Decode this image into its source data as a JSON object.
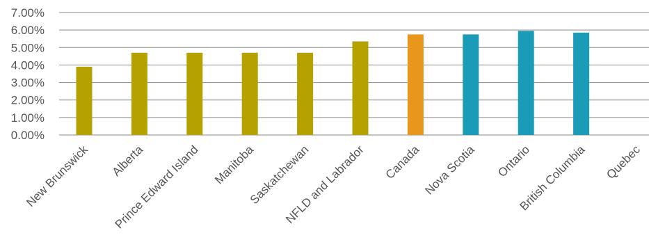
{
  "chart_data": {
    "type": "bar",
    "title": "",
    "xlabel": "",
    "ylabel": "",
    "ylim": [
      0,
      7
    ],
    "grid": true,
    "legend": "none",
    "y_ticks": [
      "0.00%",
      "1.00%",
      "2.00%",
      "3.00%",
      "4.00%",
      "5.00%",
      "6.00%",
      "7.00%"
    ],
    "categories": [
      "New Brunswick",
      "Alberta",
      "Prince Edward Island",
      "Manitoba",
      "Saskatchewan",
      "NFLD and Labrador",
      "Canada",
      "Nova Scotia",
      "Ontario",
      "British Columbia",
      "Quebec"
    ],
    "values": [
      3.9,
      4.7,
      4.7,
      4.7,
      4.7,
      5.35,
      5.75,
      5.75,
      5.95,
      5.85,
      0
    ],
    "bar_colors": [
      "#B5A100",
      "#B5A100",
      "#B5A100",
      "#B5A100",
      "#B5A100",
      "#B5A100",
      "#E8961C",
      "#1A9BB8",
      "#1A9BB8",
      "#1A9BB8",
      "#1A9BB8"
    ]
  }
}
